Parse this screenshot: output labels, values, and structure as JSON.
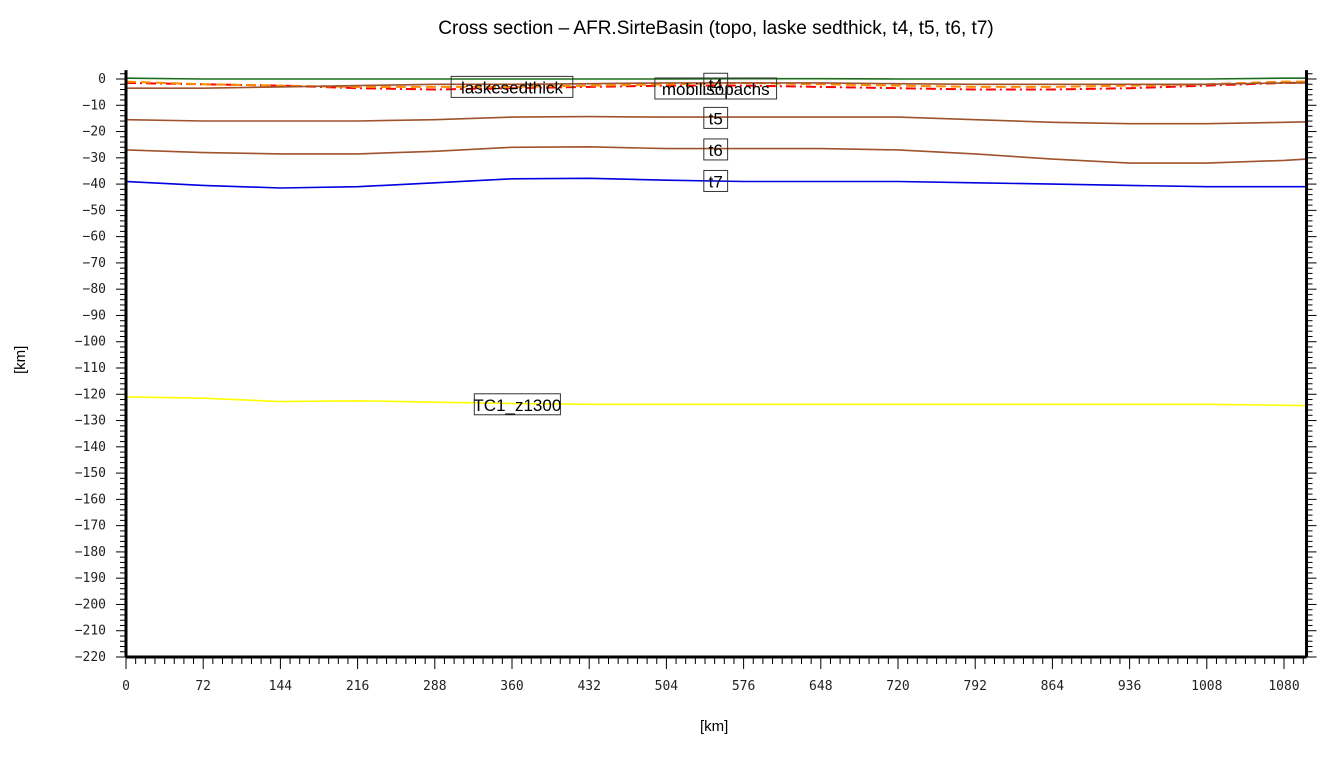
{
  "chart_data": {
    "type": "line",
    "title": "Cross section – AFR.SirteBasin (topo, laske sedthick, t4, t5, t6, t7)",
    "xlabel": "[km]",
    "ylabel": "[km]",
    "xlim": [
      0,
      1101
    ],
    "ylim": [
      -220,
      3.4
    ],
    "x_ticks": [
      0,
      72,
      144,
      216,
      288,
      360,
      432,
      504,
      576,
      648,
      720,
      792,
      864,
      936,
      1008,
      1080
    ],
    "y_ticks": [
      0,
      -10,
      -20,
      -30,
      -40,
      -50,
      -60,
      -70,
      -80,
      -90,
      -100,
      -110,
      -120,
      -130,
      -140,
      -150,
      -160,
      -170,
      -180,
      -190,
      -200,
      -210,
      -220
    ],
    "grid": false,
    "legend": "inline labels",
    "x": [
      0,
      72,
      144,
      216,
      288,
      360,
      432,
      504,
      576,
      648,
      720,
      792,
      864,
      936,
      1008,
      1080,
      1101
    ],
    "series": [
      {
        "name": "topo",
        "color": "#1a6e1a",
        "style": "solid",
        "values": [
          0.3,
          0.0,
          0.0,
          0.0,
          0.0,
          0.0,
          0.0,
          0.0,
          0.1,
          0.1,
          0.0,
          0.0,
          0.0,
          0.0,
          0.0,
          0.3,
          0.3
        ]
      },
      {
        "name": "laskesedthick",
        "color": "#ff0000",
        "style": "dashdot",
        "values": [
          -1.5,
          -2.0,
          -2.5,
          -3.5,
          -4.0,
          -3.5,
          -3.0,
          -2.5,
          -2.5,
          -3.0,
          -3.5,
          -4.0,
          -4.0,
          -3.5,
          -2.5,
          -1.5,
          -1.5
        ]
      },
      {
        "name": "mobilisopachs",
        "color": "#ff8c00",
        "style": "dashed",
        "values": [
          -1.0,
          -2.0,
          -2.5,
          -3.0,
          -3.0,
          -3.0,
          -2.5,
          -2.0,
          -1.5,
          -2.0,
          -2.5,
          -3.0,
          -3.0,
          -2.5,
          -2.0,
          -1.0,
          -1.0
        ]
      },
      {
        "name": "t4",
        "color": "#a0522d",
        "style": "solid",
        "values": [
          -3.5,
          -3.5,
          -3.0,
          -2.5,
          -2.0,
          -2.0,
          -1.8,
          -1.5,
          -1.5,
          -1.5,
          -1.8,
          -2.0,
          -2.0,
          -2.0,
          -2.0,
          -1.5,
          -1.5
        ]
      },
      {
        "name": "t5",
        "color": "#a0522d",
        "style": "solid",
        "values": [
          -15.5,
          -16.0,
          -16.0,
          -16.0,
          -15.5,
          -14.5,
          -14.3,
          -14.5,
          -14.5,
          -14.5,
          -14.5,
          -15.5,
          -16.5,
          -17.0,
          -17.0,
          -16.5,
          -16.3
        ]
      },
      {
        "name": "t6",
        "color": "#a0522d",
        "style": "solid",
        "values": [
          -27.0,
          -28.0,
          -28.5,
          -28.5,
          -27.5,
          -26.0,
          -25.8,
          -26.5,
          -26.5,
          -26.5,
          -27.0,
          -28.5,
          -30.5,
          -32.0,
          -32.0,
          -31.0,
          -30.5
        ]
      },
      {
        "name": "t7",
        "color": "#0000e0",
        "style": "solid",
        "values": [
          -39.0,
          -40.5,
          -41.5,
          -41.0,
          -39.5,
          -38.0,
          -37.8,
          -38.5,
          -39.0,
          -39.0,
          -39.0,
          -39.5,
          -40.0,
          -40.5,
          -41.0,
          -41.0,
          -41.0
        ]
      },
      {
        "name": "TC1_z1300",
        "color": "#ffff00",
        "style": "solid",
        "values": [
          -121.0,
          -121.5,
          -122.8,
          -122.5,
          -123.0,
          -123.5,
          -123.8,
          -123.8,
          -123.8,
          -123.8,
          -123.8,
          -123.8,
          -123.8,
          -123.8,
          -123.8,
          -124.2,
          -124.3
        ]
      }
    ],
    "annotations": [
      {
        "text": "laskesedthick",
        "x": 360,
        "y": -3.2
      },
      {
        "text": "mobilisopachs",
        "x": 550,
        "y": -3.8
      },
      {
        "text": "t4",
        "x": 550,
        "y": -2.0
      },
      {
        "text": "t5",
        "x": 550,
        "y": -15.0
      },
      {
        "text": "t6",
        "x": 550,
        "y": -27.0
      },
      {
        "text": "t7",
        "x": 550,
        "y": -39.0
      },
      {
        "text": "TC1_z1300",
        "x": 365,
        "y": -124.0
      }
    ]
  },
  "labels": {
    "title": "Cross section – AFR.SirteBasin (topo, laske sedthick, t4, t5, t6, t7)",
    "xlabel": "[km]",
    "ylabel": "[km]"
  }
}
